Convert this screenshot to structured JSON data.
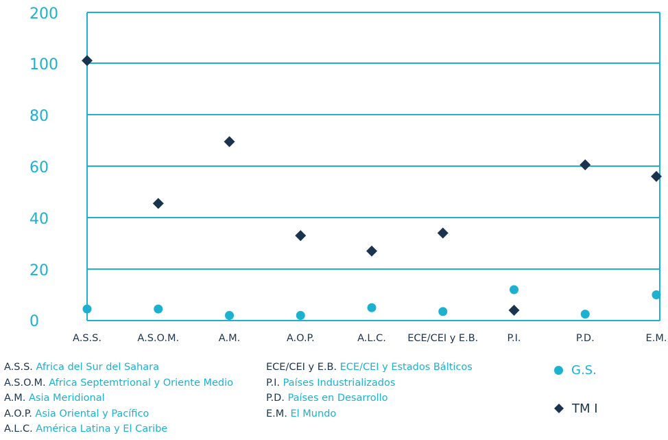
{
  "chart_data": {
    "type": "scatter",
    "categories": [
      "A.S.S.",
      "A.S.O.M.",
      "A.M.",
      "A.O.P.",
      "A.L.C.",
      "ECE/CEI y E.B.",
      "P.I.",
      "P.D.",
      "E.M."
    ],
    "y_tick_labels": [
      "0",
      "20",
      "40",
      "60",
      "80",
      "100",
      "200"
    ],
    "y_tick_values": [
      0,
      20,
      40,
      60,
      80,
      100,
      200
    ],
    "axis_break": "between 100 and 200",
    "grid": true,
    "series": [
      {
        "name": "G.S.",
        "marker": "circle",
        "color": "#1bb1cf",
        "values": [
          4.5,
          4.5,
          2,
          2,
          5,
          3.5,
          12,
          2.5,
          10
        ]
      },
      {
        "name": "TM I",
        "marker": "diamond",
        "color": "#1a3450",
        "values": [
          105,
          45.5,
          69.5,
          33,
          27,
          34,
          4,
          60.5,
          56
        ]
      }
    ],
    "colors": {
      "axis": "#1bb1cf",
      "grid": "#1bb1cf",
      "tick_text": "#1bb1cf",
      "category_text": "#1a3450"
    }
  },
  "abbreviations": {
    "left": [
      {
        "code": "A.S.S.",
        "name": "Africa del Sur del Sahara"
      },
      {
        "code": "A.S.O.M.",
        "name": "Africa Septemtrional y Oriente Medio"
      },
      {
        "code": "A.M.",
        "name": "Asia Meridional"
      },
      {
        "code": "A.O.P.",
        "name": "Asia Oriental y Pacífico"
      },
      {
        "code": "A.L.C.",
        "name": "América Latina y El Caribe"
      }
    ],
    "right": [
      {
        "code": "ECE/CEI y E.B.",
        "name": "ECE/CEI y Estados Bálticos"
      },
      {
        "code": "P.I.",
        "name": "Países Industrializados"
      },
      {
        "code": "P.D.",
        "name": "Países en Desarrollo"
      },
      {
        "code": "E.M.",
        "name": "El Mundo"
      }
    ]
  },
  "series_legend": [
    {
      "label": "G.S.",
      "icon": "circle-marker-icon"
    },
    {
      "label": "TM I",
      "icon": "diamond-marker-icon"
    }
  ]
}
